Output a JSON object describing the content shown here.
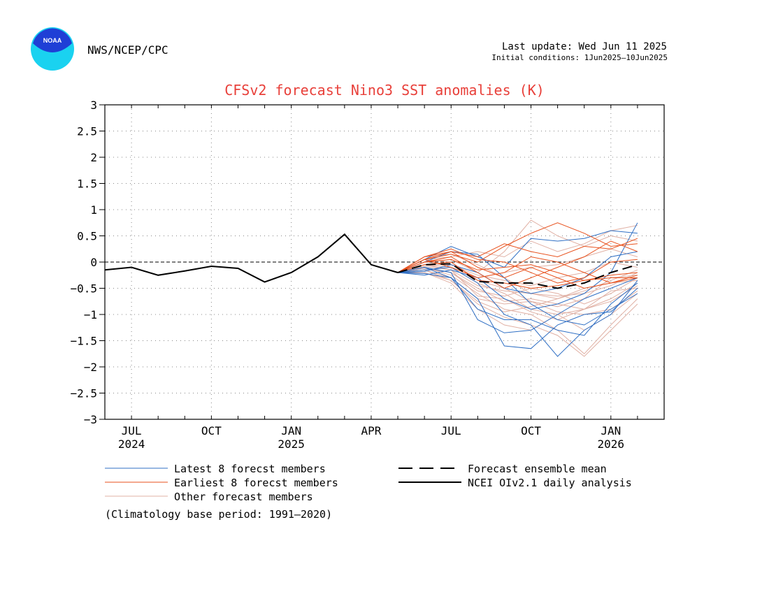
{
  "header": {
    "agency": "NWS/NCEP/CPC",
    "last_update": "Last update: Wed Jun 11 2025",
    "initial_conditions": "Initial conditions: 1Jun2025—10Jun2025",
    "logo_text": "NOAA"
  },
  "colors": {
    "title": "#e8403a",
    "latest": "#2f6fc4",
    "earliest": "#e8521e",
    "other": "#e0b0a4",
    "observed": "#000000",
    "logo_blue": "#1f3fd6",
    "logo_cyan": "#1ad2f0"
  },
  "chart_data": {
    "type": "line",
    "title": "CFSv2 forecast Nino3 SST anomalies (K)",
    "xlim_months": [
      "2024-06-01",
      "2026-03-01"
    ],
    "ylim": [
      -3,
      3
    ],
    "yticks": [
      3,
      2.5,
      2,
      1.5,
      1,
      0.5,
      0,
      -0.5,
      -1,
      -1.5,
      -2,
      -2.5,
      -3
    ],
    "ytick_labels": [
      "3",
      "2.5",
      "2",
      "1.5",
      "1",
      "0.5",
      "0",
      "−0.5",
      "−1",
      "−1.5",
      "−2",
      "−2.5",
      "−3"
    ],
    "xticks": [
      {
        "date": "2024-07-01",
        "label": "JUL",
        "year": "2024"
      },
      {
        "date": "2024-10-01",
        "label": "OCT",
        "year": ""
      },
      {
        "date": "2025-01-01",
        "label": "JAN",
        "year": "2025"
      },
      {
        "date": "2025-04-01",
        "label": "APR",
        "year": ""
      },
      {
        "date": "2025-07-01",
        "label": "JUL",
        "year": ""
      },
      {
        "date": "2025-10-01",
        "label": "OCT",
        "year": ""
      },
      {
        "date": "2026-01-01",
        "label": "JAN",
        "year": "2026"
      }
    ],
    "grid": true,
    "zero_line": true,
    "observed": {
      "name": "NCEI OIv2.1 daily analysis",
      "x": [
        "2024-06-01",
        "2024-07-01",
        "2024-08-01",
        "2024-09-01",
        "2024-10-01",
        "2024-11-01",
        "2024-12-01",
        "2025-01-01",
        "2025-02-01",
        "2025-03-01",
        "2025-04-01",
        "2025-05-01"
      ],
      "y": [
        -0.15,
        -0.1,
        -0.25,
        -0.17,
        -0.08,
        -0.12,
        -0.38,
        -0.2,
        0.1,
        0.53,
        -0.05,
        -0.2
      ]
    },
    "forecast_x": [
      "2025-05-01",
      "2025-06-01",
      "2025-07-01",
      "2025-08-01",
      "2025-09-01",
      "2025-10-01",
      "2025-11-01",
      "2025-12-01",
      "2026-01-01",
      "2026-02-01"
    ],
    "ensemble_mean": {
      "name": "Forecast ensemble mean",
      "y": [
        -0.2,
        -0.05,
        -0.03,
        -0.37,
        -0.4,
        -0.4,
        -0.5,
        -0.4,
        -0.2,
        -0.05
      ]
    },
    "latest_members": {
      "name": "Latest 8 forecst members",
      "series": [
        [
          -0.2,
          -0.22,
          -0.3,
          -0.7,
          -1.6,
          -1.65,
          -1.2,
          -1.0,
          -0.95,
          -0.5
        ],
        [
          -0.2,
          -0.15,
          -0.1,
          -0.4,
          -1.0,
          -1.2,
          -1.8,
          -1.3,
          -1.0,
          -0.35
        ],
        [
          -0.2,
          0.05,
          0.3,
          0.1,
          -0.1,
          0.45,
          0.4,
          0.45,
          0.6,
          0.55
        ],
        [
          -0.2,
          -0.1,
          -0.2,
          -1.1,
          -1.35,
          -1.3,
          -1.0,
          -0.7,
          -0.5,
          -0.3
        ],
        [
          -0.2,
          -0.25,
          -0.15,
          -0.3,
          -0.7,
          -0.9,
          -0.8,
          -0.6,
          -0.2,
          0.75
        ],
        [
          -0.2,
          0.0,
          0.2,
          0.15,
          -0.3,
          -0.8,
          -1.1,
          -1.2,
          -0.9,
          -0.6
        ],
        [
          -0.2,
          -0.18,
          -0.05,
          -0.2,
          -0.5,
          -0.6,
          -0.5,
          -0.3,
          0.1,
          0.2
        ],
        [
          -0.2,
          -0.1,
          -0.3,
          -0.9,
          -1.1,
          -1.1,
          -1.3,
          -1.4,
          -0.8,
          -0.4
        ]
      ]
    },
    "earliest_members": {
      "name": "Earliest 8 forecst members",
      "series": [
        [
          -0.2,
          0.05,
          0.15,
          0.0,
          0.3,
          0.55,
          0.75,
          0.55,
          0.3,
          0.35
        ],
        [
          -0.2,
          0.1,
          0.2,
          -0.1,
          -0.3,
          -0.1,
          -0.3,
          -0.5,
          -0.4,
          -0.3
        ],
        [
          -0.2,
          0.0,
          0.1,
          -0.2,
          -0.5,
          -0.3,
          -0.1,
          0.1,
          0.4,
          0.2
        ],
        [
          -0.2,
          0.05,
          -0.1,
          -0.3,
          -0.2,
          0.1,
          0.0,
          -0.2,
          -0.4,
          -0.25
        ],
        [
          -0.2,
          0.1,
          0.25,
          0.05,
          0.0,
          -0.2,
          -0.4,
          -0.3,
          0.0,
          0.05
        ],
        [
          -0.2,
          -0.05,
          0.0,
          -0.35,
          -0.4,
          -0.5,
          -0.45,
          -0.35,
          -0.3,
          -0.3
        ],
        [
          -0.2,
          0.05,
          0.2,
          0.1,
          0.35,
          0.2,
          0.1,
          0.3,
          0.25,
          0.45
        ],
        [
          -0.2,
          0.0,
          0.05,
          -0.15,
          -0.1,
          -0.05,
          -0.2,
          -0.35,
          -0.25,
          -0.2
        ]
      ]
    },
    "other_members": {
      "name": "Other forecast members",
      "series": [
        [
          -0.2,
          -0.1,
          -0.25,
          -0.6,
          -0.9,
          -1.0,
          -1.3,
          -1.75,
          -1.2,
          -0.7
        ],
        [
          -0.2,
          -0.15,
          -0.35,
          -0.8,
          -1.05,
          -1.2,
          -1.4,
          -1.8,
          -1.3,
          -0.8
        ],
        [
          -0.2,
          -0.05,
          -0.1,
          -0.4,
          -0.6,
          -0.9,
          -1.0,
          -1.3,
          -1.0,
          -0.6
        ],
        [
          -0.2,
          0.0,
          0.05,
          -0.2,
          0.2,
          0.8,
          0.5,
          0.3,
          0.5,
          0.4
        ],
        [
          -0.2,
          -0.12,
          -0.2,
          -0.5,
          -0.75,
          -0.7,
          -0.8,
          -0.9,
          -0.7,
          -0.4
        ],
        [
          -0.2,
          -0.2,
          -0.4,
          -0.9,
          -1.2,
          -1.3,
          -1.0,
          -0.9,
          -0.75,
          -0.45
        ],
        [
          -0.2,
          -0.05,
          -0.05,
          -0.3,
          -0.2,
          -0.1,
          -0.05,
          0.1,
          0.25,
          0.1
        ],
        [
          -0.2,
          0.1,
          0.15,
          -0.05,
          -0.3,
          -0.6,
          -0.7,
          -0.5,
          -0.4,
          -0.35
        ],
        [
          -0.2,
          -0.08,
          -0.15,
          -0.65,
          -0.7,
          -0.95,
          -1.1,
          -0.9,
          -0.55,
          -0.5
        ],
        [
          -0.2,
          0.05,
          0.1,
          0.2,
          0.1,
          0.4,
          0.2,
          0.35,
          0.6,
          0.7
        ],
        [
          -0.2,
          -0.1,
          -0.2,
          -0.55,
          -0.65,
          -0.5,
          -0.6,
          -0.8,
          -0.6,
          -0.3
        ],
        [
          -0.2,
          -0.15,
          -0.3,
          -0.7,
          -0.8,
          -0.75,
          -0.95,
          -1.0,
          -0.9,
          -0.55
        ],
        [
          -0.2,
          0.0,
          -0.05,
          -0.25,
          -0.35,
          -0.45,
          -0.3,
          -0.2,
          0.0,
          -0.1
        ],
        [
          -0.2,
          -0.05,
          -0.15,
          -0.45,
          -0.55,
          -0.6,
          -0.65,
          -0.6,
          -0.45,
          -0.2
        ],
        [
          -0.2,
          0.05,
          0.0,
          -0.35,
          -0.5,
          -0.75,
          -0.85,
          -0.7,
          -0.3,
          -0.25
        ],
        [
          -0.2,
          -0.2,
          -0.35,
          -0.75,
          -0.95,
          -0.85,
          -0.7,
          -0.55,
          -0.35,
          -0.15
        ]
      ]
    },
    "legend": {
      "placement": "bottom",
      "entries": [
        "Latest 8 forecst members",
        "Earliest 8 forecst members",
        "Other forecast members",
        "Forecast ensemble mean",
        "NCEI OIv2.1 daily analysis"
      ]
    },
    "footnote": "(Climatology base period: 1991—2020)"
  }
}
